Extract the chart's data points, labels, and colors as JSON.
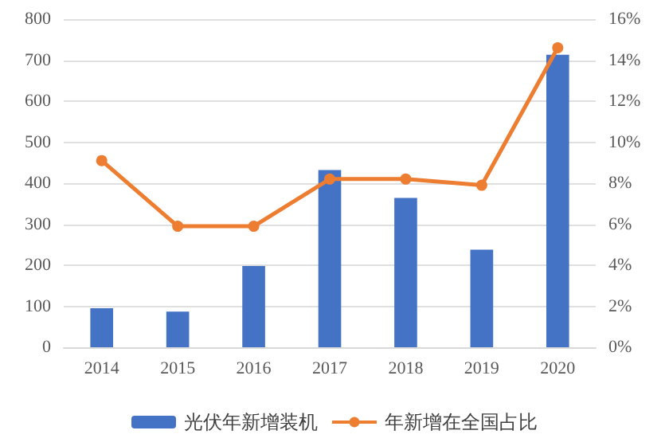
{
  "chart_data": {
    "type": "bar",
    "categories": [
      "2014",
      "2015",
      "2016",
      "2017",
      "2018",
      "2019",
      "2020"
    ],
    "series": [
      {
        "name": "光伏年新增装机",
        "color": "#4472c4",
        "values": [
          95,
          87,
          198,
          432,
          364,
          238,
          713
        ]
      },
      {
        "name": "年新增在全国占比",
        "type": "line",
        "axis": "y2",
        "color": "#ed7d31",
        "marker": "circle",
        "values": [
          9.1,
          5.9,
          5.9,
          8.2,
          8.2,
          7.9,
          14.6
        ]
      }
    ],
    "ylim": [
      0,
      800
    ],
    "yticks": [
      0,
      100,
      200,
      300,
      400,
      500,
      600,
      700,
      800
    ],
    "y2lim": [
      0,
      16
    ],
    "y2ticks": [
      {
        "value": 0,
        "label": "0%"
      },
      {
        "value": 2,
        "label": "2%"
      },
      {
        "value": 4,
        "label": "4%"
      },
      {
        "value": 6,
        "label": "6%"
      },
      {
        "value": 8,
        "label": "8%"
      },
      {
        "value": 10,
        "label": "10%"
      },
      {
        "value": 12,
        "label": "12%"
      },
      {
        "value": 14,
        "label": "14%"
      },
      {
        "value": 16,
        "label": "16%"
      }
    ],
    "grid": "y",
    "legend": "bottom"
  }
}
